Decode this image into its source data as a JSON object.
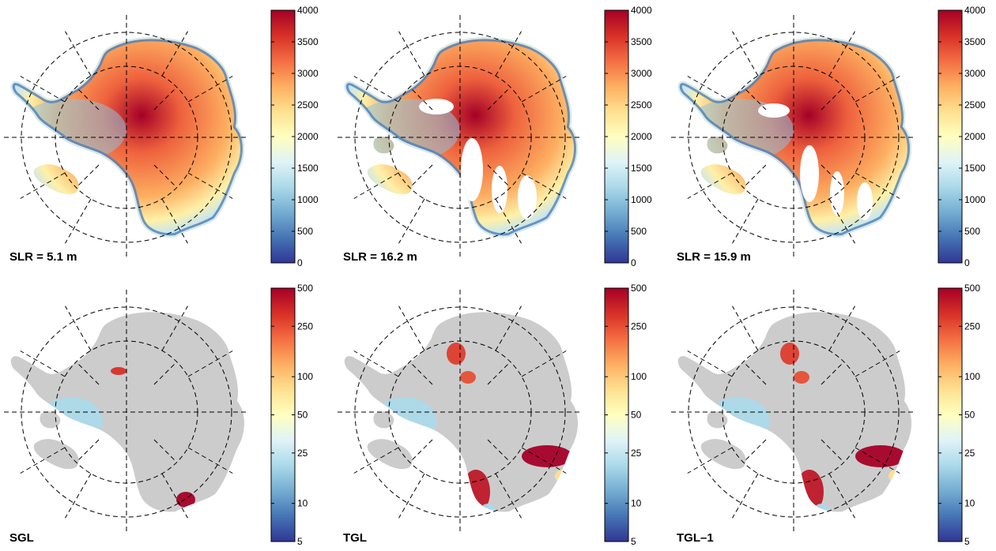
{
  "figure": {
    "colors": {
      "ice": [
        "#313695",
        "#4575b4",
        "#74add1",
        "#abd9e9",
        "#e0f3f8",
        "#ffffbf",
        "#fee090",
        "#fdae61",
        "#f46d43",
        "#d73027",
        "#a50026"
      ],
      "land_gray": "#cccccc",
      "grid_line": "#000000"
    },
    "panels": [
      {
        "label": "SLR = 5.1 m",
        "kind": "elevation",
        "variant": 0
      },
      {
        "label": "SLR = 16.2 m",
        "kind": "elevation",
        "variant": 1
      },
      {
        "label": "SLR = 15.9 m",
        "kind": "elevation",
        "variant": 2
      },
      {
        "label": "SGL",
        "kind": "difference",
        "variant": 0
      },
      {
        "label": "TGL",
        "kind": "difference",
        "variant": 1
      },
      {
        "label": "TGL–1",
        "kind": "difference",
        "variant": 2
      }
    ],
    "colorbar_elevation": {
      "ticks": [
        "4000",
        "3500",
        "3000",
        "2500",
        "2000",
        "1500",
        "1000",
        "500",
        "0"
      ],
      "min": 0,
      "max": 4000,
      "scale": "linear"
    },
    "colorbar_difference": {
      "ticks": [
        "500",
        "250",
        "100",
        "50",
        "25",
        "10",
        "5"
      ],
      "tick_values": [
        500,
        250,
        100,
        50,
        25,
        10,
        5
      ],
      "min": 5,
      "max": 500,
      "scale": "log"
    }
  }
}
